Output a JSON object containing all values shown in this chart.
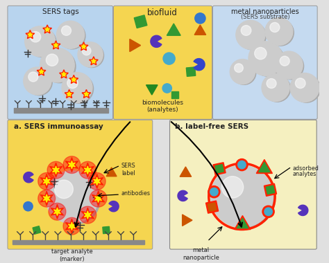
{
  "bg_color": "#e0e0e0",
  "top_left_bg": "#b8d4ee",
  "top_center_bg": "#f5d550",
  "top_right_bg": "#c5daf0",
  "bottom_left_bg": "#f5d550",
  "bottom_right_bg": "#f5f0c0",
  "labels": {
    "sers_tags": "SERS tags",
    "biofluid": "biofluid",
    "biomolecules": "biomolecules\n(analytes)",
    "metal_np_line1": "metal nanoparticles",
    "metal_np_line2": "(SERS substrate)",
    "a_title": "a. SERS immunoassay",
    "b_title": "b. label-free SERS",
    "sers_label": "SERS\nlabel",
    "antibodies": "antibodies",
    "target_analyte": "target analyte\n(marker)",
    "adsorbed_line1": "adsorbed",
    "adsorbed_line2": "analytes",
    "metal_nanoparticle": "metal\nnanoparticle"
  }
}
